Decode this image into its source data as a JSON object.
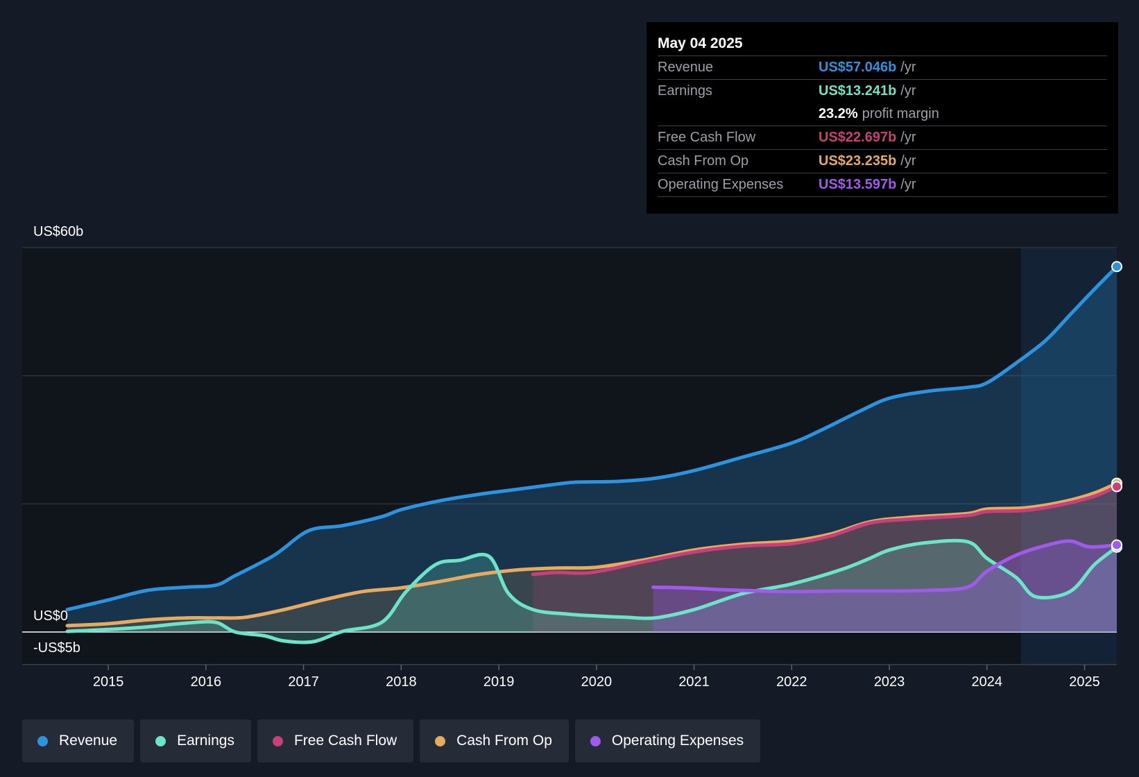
{
  "chart_data": {
    "type": "line",
    "title": "",
    "y_axis": {
      "top_label": "US$60b",
      "zero_label": "US$0",
      "bottom_label": "-US$5b",
      "ylim": [
        -5,
        60
      ]
    },
    "x_ticks": [
      "2015",
      "2016",
      "2017",
      "2018",
      "2019",
      "2020",
      "2021",
      "2022",
      "2023",
      "2024",
      "2025"
    ],
    "xlim": [
      2014.58,
      2025.33
    ],
    "highlight_start": 2024.35,
    "series": [
      {
        "key": "revenue",
        "name": "Revenue",
        "color": "#2a94e0",
        "x": [
          2014.58,
          2015.0,
          2015.4,
          2015.8,
          2016.1,
          2016.3,
          2016.7,
          2017.05,
          2017.4,
          2017.8,
          2018.0,
          2018.4,
          2018.8,
          2019.2,
          2019.6,
          2019.8,
          2020.2,
          2020.6,
          2021.0,
          2021.5,
          2022.0,
          2022.3,
          2022.7,
          2023.0,
          2023.4,
          2023.8,
          2024.0,
          2024.3,
          2024.6,
          2024.85,
          2025.1,
          2025.33
        ],
        "y": [
          3.5,
          5.0,
          6.5,
          7.0,
          7.3,
          8.8,
          12.0,
          15.8,
          16.6,
          18.0,
          19.1,
          20.5,
          21.5,
          22.3,
          23.1,
          23.4,
          23.5,
          24.0,
          25.2,
          27.3,
          29.5,
          31.5,
          34.5,
          36.5,
          37.6,
          38.2,
          38.9,
          42.0,
          45.5,
          49.5,
          53.5,
          57.046
        ]
      },
      {
        "key": "earnings",
        "name": "Earnings",
        "color": "#6ce4c9",
        "x": [
          2014.58,
          2015.0,
          2015.4,
          2015.8,
          2016.1,
          2016.3,
          2016.6,
          2016.8,
          2017.1,
          2017.4,
          2017.8,
          2018.05,
          2018.35,
          2018.6,
          2018.9,
          2019.1,
          2019.35,
          2019.7,
          2020.0,
          2020.3,
          2020.6,
          2021.0,
          2021.5,
          2022.0,
          2022.5,
          2022.8,
          2023.0,
          2023.35,
          2023.8,
          2024.0,
          2024.3,
          2024.5,
          2024.85,
          2025.1,
          2025.33
        ],
        "y": [
          0.1,
          0.4,
          0.8,
          1.4,
          1.5,
          0.0,
          -0.6,
          -1.4,
          -1.5,
          0.1,
          1.5,
          6.3,
          10.5,
          11.2,
          11.8,
          6.0,
          3.5,
          2.8,
          2.5,
          2.3,
          2.2,
          3.5,
          6.0,
          7.5,
          9.7,
          11.5,
          12.8,
          13.9,
          14.1,
          11.5,
          8.5,
          5.5,
          6.3,
          10.5,
          13.241
        ]
      },
      {
        "key": "fcf",
        "name": "Free Cash Flow",
        "color": "#c8407a",
        "x": [
          2019.35,
          2019.6,
          2019.8,
          2020.0,
          2020.5,
          2021.0,
          2021.5,
          2022.0,
          2022.4,
          2022.8,
          2023.2,
          2023.8,
          2024.0,
          2024.4,
          2024.8,
          2025.1,
          2025.33
        ],
        "y": [
          9.0,
          9.3,
          9.2,
          9.4,
          11.0,
          12.5,
          13.4,
          13.8,
          15.0,
          17.0,
          17.6,
          18.2,
          18.8,
          19.0,
          20.0,
          21.2,
          22.697
        ]
      },
      {
        "key": "cfo",
        "name": "Cash From Op",
        "color": "#e8aa5e",
        "x": [
          2014.58,
          2015.0,
          2015.4,
          2015.8,
          2016.1,
          2016.4,
          2016.8,
          2017.2,
          2017.6,
          2018.0,
          2018.4,
          2018.8,
          2019.2,
          2019.6,
          2020.0,
          2020.5,
          2021.0,
          2021.5,
          2022.0,
          2022.4,
          2022.8,
          2023.2,
          2023.8,
          2024.0,
          2024.4,
          2024.8,
          2025.1,
          2025.33
        ],
        "y": [
          1.0,
          1.3,
          1.9,
          2.2,
          2.2,
          2.3,
          3.5,
          5.0,
          6.3,
          6.9,
          7.9,
          9.0,
          9.7,
          10.0,
          10.1,
          11.3,
          12.8,
          13.7,
          14.2,
          15.3,
          17.2,
          17.9,
          18.5,
          19.2,
          19.4,
          20.4,
          21.7,
          23.235
        ]
      },
      {
        "key": "opex",
        "name": "Operating Expenses",
        "color": "#a05aee",
        "x": [
          2020.58,
          2020.9,
          2021.3,
          2021.7,
          2022.0,
          2022.5,
          2023.0,
          2023.4,
          2023.8,
          2024.0,
          2024.3,
          2024.6,
          2024.85,
          2025.05,
          2025.33
        ],
        "y": [
          7.0,
          6.9,
          6.6,
          6.4,
          6.3,
          6.4,
          6.4,
          6.5,
          7.0,
          9.5,
          12.0,
          13.5,
          14.2,
          13.3,
          13.597
        ]
      }
    ],
    "tooltip": {
      "date": "May 04 2025",
      "revenue_label": "Revenue",
      "revenue_value": "US$57.046b",
      "earnings_label": "Earnings",
      "earnings_value": "US$13.241b",
      "margin_value": "23.2%",
      "margin_label": "profit margin",
      "fcf_label": "Free Cash Flow",
      "fcf_value": "US$22.697b",
      "cfo_label": "Cash From Op",
      "cfo_value": "US$23.235b",
      "opex_label": "Operating Expenses",
      "opex_value": "US$13.597b",
      "unit": "/yr"
    }
  },
  "legend": [
    {
      "name": "Revenue",
      "color": "#2a94e0"
    },
    {
      "name": "Earnings",
      "color": "#6ce4c9"
    },
    {
      "name": "Free Cash Flow",
      "color": "#c8407a"
    },
    {
      "name": "Cash From Op",
      "color": "#e8aa5e"
    },
    {
      "name": "Operating Expenses",
      "color": "#a05aee"
    }
  ]
}
